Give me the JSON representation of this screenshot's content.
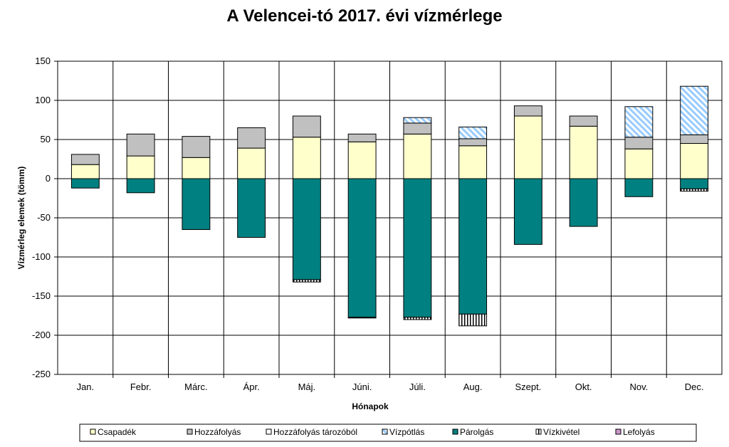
{
  "chart_data": {
    "type": "bar",
    "stacked": true,
    "title": "A Velencei-tó 2017. évi vízmérlege",
    "xlabel": "Hónapok",
    "ylabel": "Vízmérleg elemek (tömm)",
    "ylim": [
      -250,
      150
    ],
    "yticks": [
      150,
      100,
      50,
      0,
      -50,
      -100,
      -150,
      -200,
      -250
    ],
    "grid": true,
    "legend_position": "bottom",
    "categories": [
      "Jan.",
      "Febr.",
      "Márc.",
      "Ápr.",
      "Máj.",
      "Júni.",
      "Júli.",
      "Aug.",
      "Szept.",
      "Okt.",
      "Nov.",
      "Dec."
    ],
    "series": [
      {
        "name": "Csapadék",
        "color": "#ffffcc",
        "pattern": "solid",
        "values": [
          18,
          29,
          27,
          39,
          53,
          47,
          57,
          42,
          80,
          67,
          38,
          45
        ]
      },
      {
        "name": "Hozzáfolyás",
        "color": "#c0c0c0",
        "pattern": "solid",
        "values": [
          13,
          28,
          27,
          26,
          27,
          10,
          14,
          9,
          13,
          13,
          15,
          11
        ]
      },
      {
        "name": "Hozzáfolyás tározóból",
        "color": "#ffffff",
        "pattern": "solid",
        "values": [
          0,
          0,
          0,
          0,
          0,
          0,
          0,
          0,
          0,
          0,
          0,
          0
        ]
      },
      {
        "name": "Vízpótlás",
        "color": "#99ccff",
        "pattern": "diagonal",
        "values": [
          0,
          0,
          0,
          0,
          0,
          0,
          7,
          15,
          0,
          0,
          39,
          62
        ]
      },
      {
        "name": "Párolgás",
        "color": "#008080",
        "pattern": "solid",
        "values": [
          -12,
          -18,
          -65,
          -75,
          -129,
          -177,
          -177,
          -173,
          -84,
          -61,
          -23,
          -13
        ]
      },
      {
        "name": "Vízkivétel",
        "color": "#ffffff",
        "pattern": "vertical",
        "values": [
          0,
          0,
          0,
          0,
          -3,
          -1,
          -3,
          -15,
          0,
          0,
          0,
          -3
        ]
      },
      {
        "name": "Lefolyás",
        "color": "#cc99cc",
        "pattern": "solid",
        "values": [
          0,
          0,
          0,
          0,
          0,
          0,
          0,
          0,
          0,
          0,
          0,
          0
        ]
      }
    ]
  }
}
